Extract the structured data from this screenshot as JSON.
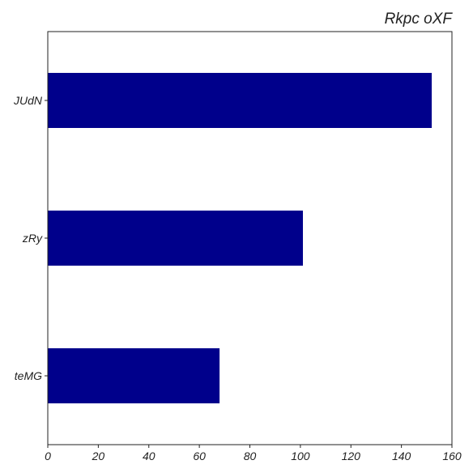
{
  "chart_data": {
    "type": "bar",
    "orientation": "horizontal",
    "title": "Rkpc oXF",
    "xlabel": "",
    "ylabel": "",
    "categories": [
      "JUdN",
      "zRy",
      "teMG"
    ],
    "values": [
      152,
      101,
      68
    ],
    "xlim": [
      0,
      160
    ],
    "xticks": [
      0,
      20,
      40,
      60,
      80,
      100,
      120,
      140,
      160
    ],
    "grid": false,
    "bar_color": "#00008b",
    "axis_color": "#222222"
  }
}
